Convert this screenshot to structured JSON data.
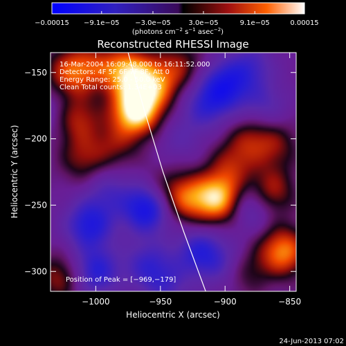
{
  "chart_data": {
    "type": "heatmap",
    "title": "Reconstructed RHESSI Image",
    "xlabel": "Heliocentric X (arcsec)",
    "ylabel": "Heliocentric Y (arcsec)",
    "xlim": [
      -1035,
      -845
    ],
    "ylim": [
      -315,
      -135
    ],
    "xticks": [
      -1000,
      -950,
      -900,
      -850
    ],
    "xtick_labels": [
      "−1000",
      "−950",
      "−900",
      "−850"
    ],
    "yticks": [
      -150,
      -200,
      -250,
      -300
    ],
    "ytick_labels": [
      "−150",
      "−200",
      "−250",
      "−300"
    ],
    "colorbar": {
      "range": [
        -0.00015,
        0.00015
      ],
      "ticks": [
        -0.00015,
        -9.1e-05,
        -3e-05,
        3e-05,
        9.1e-05,
        0.00015
      ],
      "tick_labels": [
        "−0.00015",
        "−9.1e−05",
        "−3.0e−05",
        "3.0e−05",
        "9.1e−05",
        "0.00015"
      ],
      "units_main": "(photons cm",
      "units_exp1": "−2",
      "units_mid": " s",
      "units_exp2": "−1",
      "units_mid2": " asec",
      "units_exp3": "−2",
      "units_end": ")"
    },
    "info_lines": [
      "16-Mar-2004 16:09:48.000 to 16:11:52.000",
      "Detectors: 4F 5F 6F 7F 8F, Att 0",
      "Energy Range: 25.0 - 50.0 keV",
      "Clean     Total counts: 1.34E+03"
    ],
    "peak_label": "Position of Peak = [−969,−179]",
    "peak": [
      -969,
      -179
    ],
    "limb_curve": [
      [
        -975,
        -135
      ],
      [
        -962,
        -180
      ],
      [
        -948,
        -225
      ],
      [
        -932,
        -270
      ],
      [
        -915,
        -315
      ]
    ],
    "blobs": [
      {
        "x": -1020,
        "y": -150,
        "v": 0.55
      },
      {
        "x": -1000,
        "y": -145,
        "v": 0.35
      },
      {
        "x": -975,
        "y": -150,
        "v": 0.75
      },
      {
        "x": -969,
        "y": -179,
        "v": 1.0
      },
      {
        "x": -955,
        "y": -160,
        "v": 0.6
      },
      {
        "x": -1015,
        "y": -185,
        "v": 0.45
      },
      {
        "x": -1010,
        "y": -215,
        "v": 0.35
      },
      {
        "x": -985,
        "y": -205,
        "v": 0.3
      },
      {
        "x": -950,
        "y": -240,
        "v": 0.25
      },
      {
        "x": -935,
        "y": -145,
        "v": 0.35
      },
      {
        "x": -930,
        "y": -245,
        "v": 0.55
      },
      {
        "x": -905,
        "y": -245,
        "v": 0.85
      },
      {
        "x": -895,
        "y": -220,
        "v": 0.35
      },
      {
        "x": -880,
        "y": -200,
        "v": 0.35
      },
      {
        "x": -865,
        "y": -240,
        "v": 0.5
      },
      {
        "x": -860,
        "y": -205,
        "v": 0.3
      },
      {
        "x": -855,
        "y": -285,
        "v": 0.7
      },
      {
        "x": -885,
        "y": -300,
        "v": 0.3
      },
      {
        "x": -1028,
        "y": -305,
        "v": 0.4
      },
      {
        "x": -1035,
        "y": -180,
        "v": -0.2
      },
      {
        "x": -990,
        "y": -240,
        "v": -0.3
      },
      {
        "x": -960,
        "y": -252,
        "v": -0.8
      },
      {
        "x": -1005,
        "y": -265,
        "v": -0.6
      },
      {
        "x": -1000,
        "y": -300,
        "v": -0.55
      },
      {
        "x": -960,
        "y": -295,
        "v": -0.4
      },
      {
        "x": -920,
        "y": -285,
        "v": -0.5
      },
      {
        "x": -935,
        "y": -200,
        "v": -0.2
      },
      {
        "x": -915,
        "y": -175,
        "v": -0.4
      },
      {
        "x": -900,
        "y": -160,
        "v": -0.6
      },
      {
        "x": -880,
        "y": -145,
        "v": -0.35
      },
      {
        "x": -870,
        "y": -175,
        "v": -0.3
      },
      {
        "x": -880,
        "y": -250,
        "v": -0.4
      },
      {
        "x": -900,
        "y": -295,
        "v": -0.3
      },
      {
        "x": -945,
        "y": -310,
        "v": -0.3
      }
    ]
  },
  "footer": {
    "timestamp": "24-Jun-2013 07:02"
  }
}
